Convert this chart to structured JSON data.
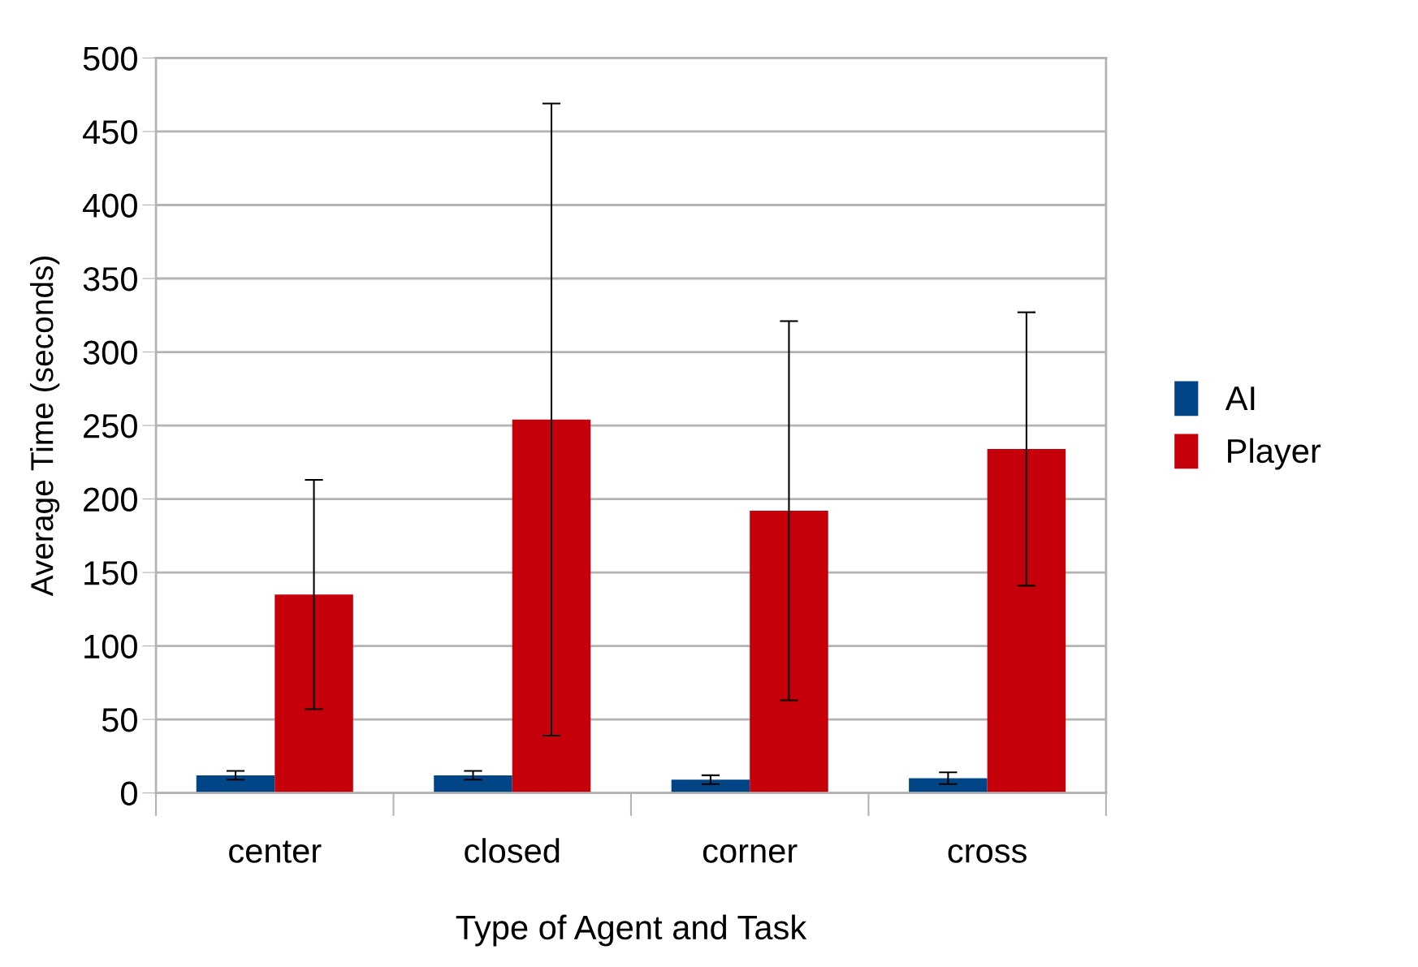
{
  "chart_data": {
    "type": "bar",
    "xlabel": "Type of Agent and Task",
    "ylabel": "Average Time (seconds)",
    "categories": [
      "center",
      "closed",
      "corner",
      "cross"
    ],
    "series": [
      {
        "name": "AI",
        "color": "#004586",
        "values": [
          12,
          12,
          9,
          10
        ],
        "errors": [
          3,
          3,
          3,
          4
        ]
      },
      {
        "name": "Player",
        "color": "#c5000b",
        "values": [
          135,
          254,
          192,
          234
        ],
        "errors": [
          78,
          215,
          129,
          93
        ]
      }
    ],
    "ylim": [
      0,
      500
    ],
    "yticks": [
      0,
      50,
      100,
      150,
      200,
      250,
      300,
      350,
      400,
      450,
      500
    ],
    "grid": "y",
    "legend": "right"
  }
}
